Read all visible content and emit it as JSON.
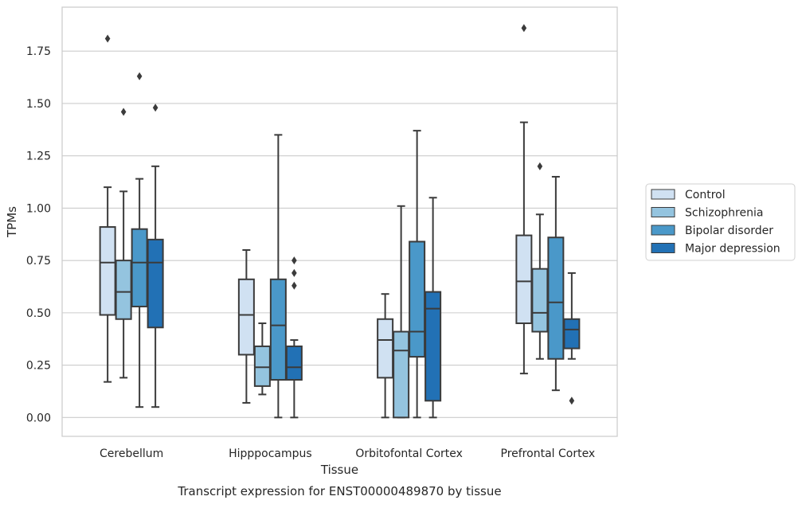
{
  "chart_data": {
    "type": "boxplot",
    "title": "",
    "caption": "Transcript expression for ENST00000489870 by tissue",
    "xlabel": "Tissue",
    "ylabel": "TPMs",
    "ylim": [
      -0.09,
      1.96
    ],
    "yticks": [
      0.0,
      0.25,
      0.5,
      0.75,
      1.0,
      1.25,
      1.5,
      1.75
    ],
    "ytick_labels": [
      "0.00",
      "0.25",
      "0.50",
      "0.75",
      "1.00",
      "1.25",
      "1.50",
      "1.75"
    ],
    "grid": "horizontal",
    "legend_position": "right",
    "categories": [
      "Cerebellum",
      "Hipppocampus",
      "Orbitofontal Cortex",
      "Prefrontal Cortex"
    ],
    "series": [
      {
        "name": "Control",
        "color": "#d0e1f2",
        "boxes": [
          {
            "whislo": 0.17,
            "q1": 0.49,
            "med": 0.74,
            "q3": 0.91,
            "whishi": 1.1,
            "fliers": [
              1.81
            ]
          },
          {
            "whislo": 0.07,
            "q1": 0.3,
            "med": 0.49,
            "q3": 0.66,
            "whishi": 0.8,
            "fliers": []
          },
          {
            "whislo": 0.0,
            "q1": 0.19,
            "med": 0.37,
            "q3": 0.47,
            "whishi": 0.59,
            "fliers": []
          },
          {
            "whislo": 0.21,
            "q1": 0.45,
            "med": 0.65,
            "q3": 0.87,
            "whishi": 1.41,
            "fliers": [
              1.86
            ]
          }
        ]
      },
      {
        "name": "Schizophrenia",
        "color": "#94c4df",
        "boxes": [
          {
            "whislo": 0.19,
            "q1": 0.47,
            "med": 0.6,
            "q3": 0.75,
            "whishi": 1.08,
            "fliers": [
              1.46
            ]
          },
          {
            "whislo": 0.11,
            "q1": 0.15,
            "med": 0.24,
            "q3": 0.34,
            "whishi": 0.45,
            "fliers": []
          },
          {
            "whislo": 0.0,
            "q1": 0.0,
            "med": 0.32,
            "q3": 0.41,
            "whishi": 1.01,
            "fliers": []
          },
          {
            "whislo": 0.28,
            "q1": 0.41,
            "med": 0.5,
            "q3": 0.71,
            "whishi": 0.97,
            "fliers": [
              1.2
            ]
          }
        ]
      },
      {
        "name": "Bipolar disorder",
        "color": "#4a98c9",
        "boxes": [
          {
            "whislo": 0.05,
            "q1": 0.53,
            "med": 0.74,
            "q3": 0.9,
            "whishi": 1.14,
            "fliers": [
              1.63
            ]
          },
          {
            "whislo": 0.0,
            "q1": 0.18,
            "med": 0.44,
            "q3": 0.66,
            "whishi": 1.35,
            "fliers": []
          },
          {
            "whislo": 0.0,
            "q1": 0.29,
            "med": 0.41,
            "q3": 0.84,
            "whishi": 1.37,
            "fliers": []
          },
          {
            "whislo": 0.13,
            "q1": 0.28,
            "med": 0.55,
            "q3": 0.86,
            "whishi": 1.15,
            "fliers": []
          }
        ]
      },
      {
        "name": "Major depression",
        "color": "#2271b5",
        "boxes": [
          {
            "whislo": 0.05,
            "q1": 0.43,
            "med": 0.74,
            "q3": 0.85,
            "whishi": 1.2,
            "fliers": [
              1.48
            ]
          },
          {
            "whislo": 0.0,
            "q1": 0.18,
            "med": 0.24,
            "q3": 0.34,
            "whishi": 0.37,
            "fliers": [
              0.63,
              0.69,
              0.75
            ]
          },
          {
            "whislo": 0.0,
            "q1": 0.08,
            "med": 0.52,
            "q3": 0.6,
            "whishi": 1.05,
            "fliers": []
          },
          {
            "whislo": 0.28,
            "q1": 0.33,
            "med": 0.42,
            "q3": 0.47,
            "whishi": 0.69,
            "fliers": [
              0.08
            ]
          }
        ]
      }
    ]
  }
}
